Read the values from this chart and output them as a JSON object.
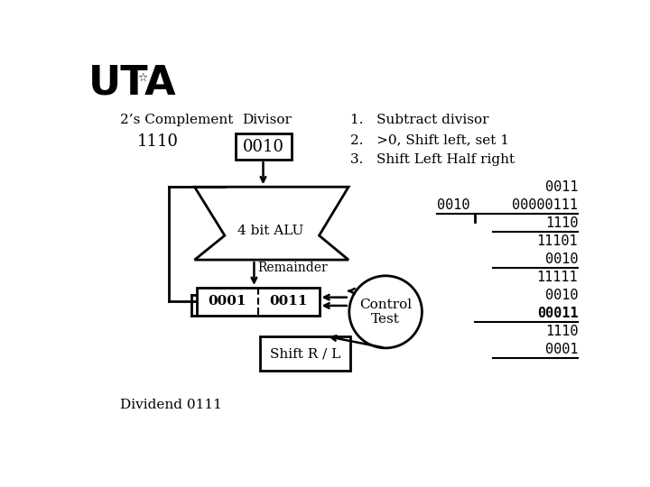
{
  "background_color": "#ffffff",
  "complement_label": "2’s Complement",
  "complement_value": "1110",
  "divisor_label": "Divisor",
  "divisor_box_value": "0010",
  "alu_label": "4 bit ALU",
  "remainder_label": "Remainder",
  "shift_label": "Shift R / L",
  "dividend_label": "Dividend 0111",
  "control_label": "Control\nTest",
  "steps": [
    "1.   Subtract divisor",
    "2.   >0, Shift left, set 1",
    "3.   Shift Left Half right"
  ],
  "fig_w": 7.2,
  "fig_h": 5.4,
  "dpi": 100
}
